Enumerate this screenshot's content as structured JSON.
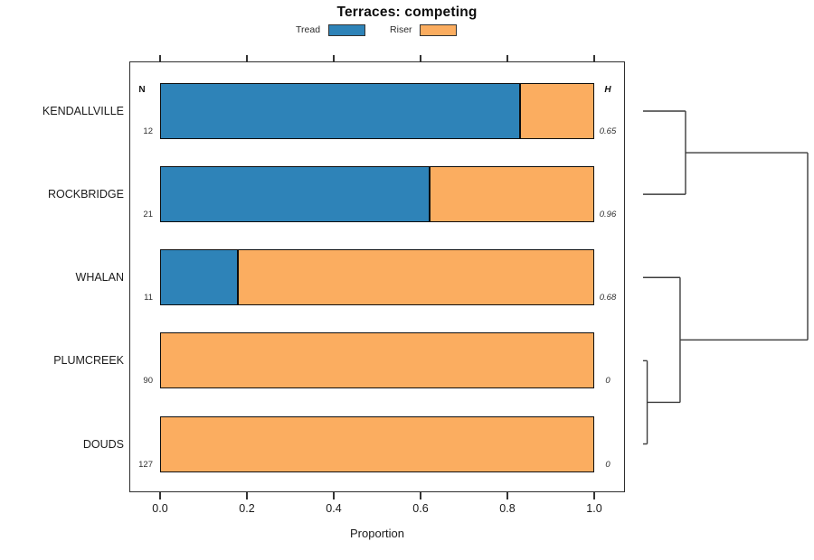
{
  "title": "Terraces: competing",
  "legend": {
    "items": [
      {
        "label": "Tread",
        "color": "#2E83B8"
      },
      {
        "label": "Riser",
        "color": "#FBAD60"
      }
    ]
  },
  "chart_data": {
    "type": "bar",
    "orientation": "horizontal",
    "stacked": true,
    "title": "Terraces: competing",
    "xlabel": "Proportion",
    "xlim": [
      0,
      1
    ],
    "x_ticks": [
      0.0,
      0.2,
      0.4,
      0.6,
      0.8,
      1.0
    ],
    "x_tick_labels": [
      "0.0",
      "0.2",
      "0.4",
      "0.6",
      "0.8",
      "1.0"
    ],
    "grid": false,
    "categories": [
      "KENDALLVILLE",
      "ROCKBRIDGE",
      "WHALAN",
      "PLUMCREEK",
      "DOUDS"
    ],
    "series": [
      {
        "name": "Tread",
        "color": "#2E83B8",
        "values": [
          0.83,
          0.62,
          0.18,
          0,
          0
        ]
      },
      {
        "name": "Riser",
        "color": "#FBAD60",
        "values": [
          0.17,
          0.38,
          0.82,
          1.0,
          1.0
        ]
      }
    ],
    "n_column": {
      "header": "N",
      "values": [
        "12",
        "21",
        "11",
        "90",
        "127"
      ]
    },
    "h_column": {
      "header": "H",
      "values": [
        "0.65",
        "0.96",
        "0.68",
        "0",
        "0"
      ]
    },
    "dendrogram": {
      "position": "right",
      "merges": [
        {
          "a": {
            "leaf": 0
          },
          "b": {
            "leaf": 1
          },
          "height": 0.258
        },
        {
          "a": {
            "leaf": 3
          },
          "b": {
            "leaf": 4
          },
          "height": 0.025
        },
        {
          "a": {
            "leaf": 2
          },
          "b": {
            "merge": 1
          },
          "height": 0.225
        },
        {
          "a": {
            "merge": 0
          },
          "b": {
            "merge": 2
          },
          "height": 1.0
        }
      ]
    }
  }
}
